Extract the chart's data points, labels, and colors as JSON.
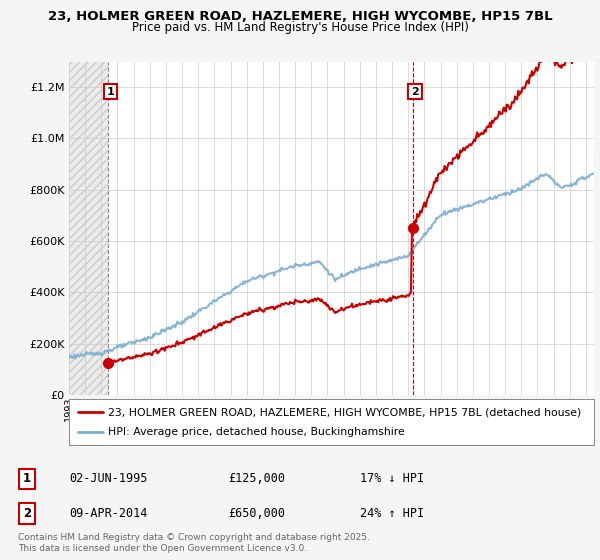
{
  "title_line1": "23, HOLMER GREEN ROAD, HAZLEMERE, HIGH WYCOMBE, HP15 7BL",
  "title_line2": "Price paid vs. HM Land Registry's House Price Index (HPI)",
  "legend_label1": "23, HOLMER GREEN ROAD, HAZLEMERE, HIGH WYCOMBE, HP15 7BL (detached house)",
  "legend_label2": "HPI: Average price, detached house, Buckinghamshire",
  "annotation1_label": "1",
  "annotation1_date": "02-JUN-1995",
  "annotation1_price": "£125,000",
  "annotation1_hpi": "17% ↓ HPI",
  "annotation2_label": "2",
  "annotation2_date": "09-APR-2014",
  "annotation2_price": "£650,000",
  "annotation2_hpi": "24% ↑ HPI",
  "copyright_text": "Contains HM Land Registry data © Crown copyright and database right 2025.\nThis data is licensed under the Open Government Licence v3.0.",
  "price_color": "#cc0000",
  "hpi_color": "#7aadd4",
  "background_color": "#f5f5f5",
  "plot_bg_color": "#ffffff",
  "ylim": [
    0,
    1300000
  ],
  "xlim_start": 1993,
  "xlim_end": 2025.5,
  "sale1_year": 1995.42,
  "sale1_price": 125000,
  "sale2_year": 2014.27,
  "sale2_price": 650000
}
